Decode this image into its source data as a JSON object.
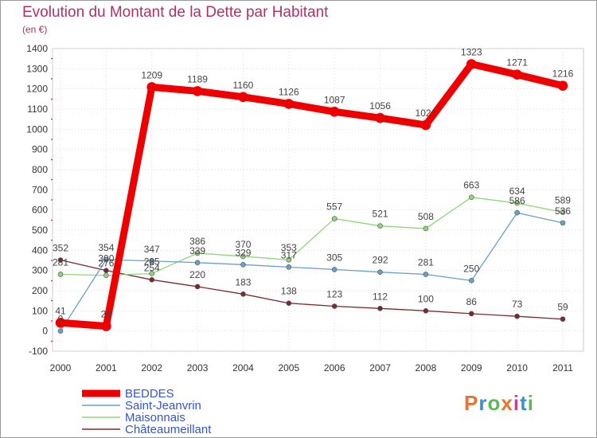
{
  "header": {
    "title": "Evolution du Montant de la Dette par Habitant",
    "unit": "(en €)"
  },
  "logo": {
    "text": "Proxiti",
    "colors": [
      "#e8732a",
      "#3a8fd6",
      "#5cb85c",
      "#e8732a",
      "#d63a8f",
      "#3a8fd6",
      "#5cb85c"
    ]
  },
  "chart_data": {
    "type": "line",
    "title": "Evolution du Montant de la Dette par Habitant",
    "ylabel": "(en €)",
    "xlabel": "",
    "x": [
      "2000",
      "2001",
      "2002",
      "2003",
      "2004",
      "2005",
      "2006",
      "2007",
      "2008",
      "2009",
      "2010",
      "2011"
    ],
    "ylim": [
      -100,
      1400
    ],
    "yticks": [
      -100,
      0,
      100,
      200,
      300,
      400,
      500,
      600,
      700,
      800,
      900,
      1000,
      1100,
      1200,
      1300,
      1400
    ],
    "grid": true,
    "legend": "bottom-left",
    "series": [
      {
        "name": "Châteaumeillant",
        "color": "#7a2a2e",
        "width": 1.3,
        "values": [
          352,
          300,
          254,
          220,
          183,
          138,
          123,
          112,
          100,
          86,
          73,
          59
        ],
        "labels": [
          "352",
          "300",
          "254",
          "220",
          "183",
          "138",
          "123",
          "112",
          "100",
          "86",
          "73",
          "59"
        ]
      },
      {
        "name": "Maisonnais",
        "color": "#8fd67a",
        "width": 1.3,
        "values": [
          281,
          276,
          285,
          386,
          370,
          353,
          557,
          521,
          508,
          663,
          634,
          589
        ],
        "labels": [
          "281",
          "276",
          "285",
          "386",
          "370",
          "353",
          "557",
          "521",
          "508",
          "663",
          "634",
          "589"
        ]
      },
      {
        "name": "Saint-Jeanvrin",
        "color": "#6aa0c8",
        "width": 1.3,
        "values": [
          0,
          354,
          347,
          339,
          329,
          317,
          305,
          292,
          281,
          250,
          586,
          536
        ],
        "labels": [
          "0",
          "354",
          "347",
          "339",
          "329",
          "317",
          "305",
          "292",
          "281",
          "250",
          "586",
          "536"
        ]
      },
      {
        "name": "BEDDES",
        "color": "#ee0000",
        "width": 9,
        "values": [
          41,
          24,
          1209,
          1189,
          1160,
          1126,
          1087,
          1056,
          1021,
          1323,
          1271,
          1216
        ],
        "labels": [
          "41",
          "24",
          "1209",
          "1189",
          "1160",
          "1126",
          "1087",
          "1056",
          "1021",
          "1323",
          "1271",
          "1216"
        ]
      }
    ],
    "legend_order": [
      "BEDDES",
      "Saint-Jeanvrin",
      "Maisonnais",
      "Châteaumeillant"
    ],
    "legend_text_color": "#3355cc"
  }
}
